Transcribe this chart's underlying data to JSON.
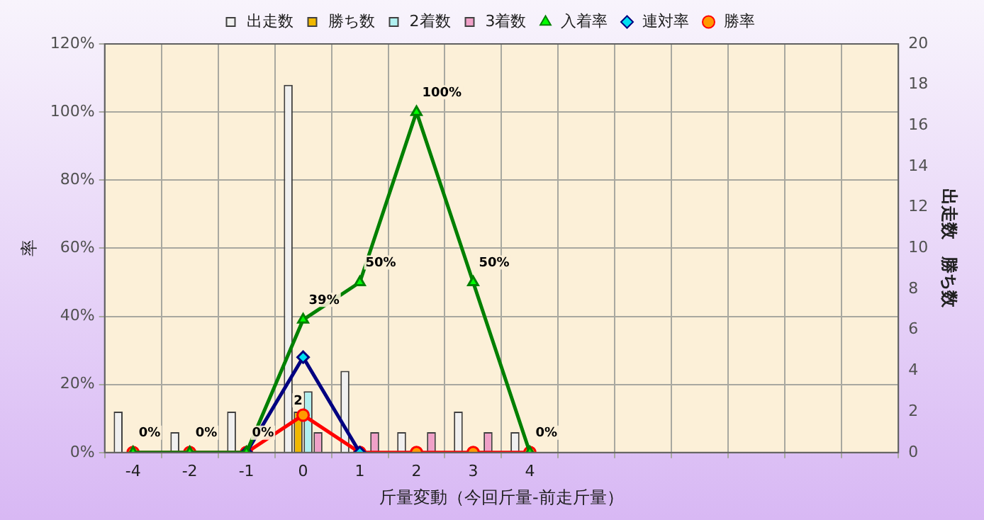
{
  "chart_data": {
    "type": "bar",
    "categories": [
      "-4",
      "-2",
      "-1",
      "0",
      "1",
      "2",
      "3",
      "4",
      null,
      null,
      null,
      null,
      null,
      null
    ],
    "xlabel": "斤量変動（今回斤量-前走斤量）",
    "ylabel": "率",
    "y2label": "出走数　勝ち数",
    "ylim": [
      0,
      120
    ],
    "yticks": [
      {
        "value": 0,
        "label": "0%"
      },
      {
        "value": 20,
        "label": "20%"
      },
      {
        "value": 40,
        "label": "40%"
      },
      {
        "value": 60,
        "label": "60%"
      },
      {
        "value": 80,
        "label": "80%"
      },
      {
        "value": 100,
        "label": "100%"
      },
      {
        "value": 120,
        "label": "120%"
      }
    ],
    "y2lim": [
      0,
      20
    ],
    "y2ticks": [
      0,
      2,
      4,
      6,
      8,
      10,
      12,
      14,
      16,
      18,
      20
    ],
    "grid": true,
    "legend": "top",
    "series": [
      {
        "name": "出走数",
        "axis": "y2",
        "color": "#f0f0f0",
        "values": [
          2,
          1,
          2,
          18,
          4,
          1,
          2,
          1,
          null,
          null,
          null,
          null,
          null,
          null
        ]
      },
      {
        "name": "勝ち数",
        "axis": "y2",
        "color": "#f0b800",
        "values": [
          0,
          0,
          0,
          2,
          0,
          0,
          0,
          0,
          null,
          null,
          null,
          null,
          null,
          null
        ],
        "value_labels": [
          null,
          null,
          null,
          "2",
          null,
          null,
          null,
          null,
          null,
          null,
          null,
          null,
          null,
          null
        ]
      },
      {
        "name": "2着数",
        "axis": "y2",
        "color": "#b0f0f0",
        "values": [
          0,
          0,
          0,
          3,
          0,
          0,
          0,
          0,
          null,
          null,
          null,
          null,
          null,
          null
        ]
      },
      {
        "name": "3着数",
        "axis": "y2",
        "color": "#f0a0c8",
        "values": [
          0,
          0,
          0,
          1,
          1,
          1,
          1,
          0,
          null,
          null,
          null,
          null,
          null,
          null
        ]
      },
      {
        "name": "入着率",
        "type": "line",
        "color": "#008000",
        "marker": "triangle",
        "values": [
          0,
          0,
          0,
          39,
          50,
          100,
          50,
          0,
          null,
          null,
          null,
          null,
          null,
          null
        ],
        "value_labels": [
          "0%",
          "0%",
          "0%",
          "39%",
          "50%",
          "100%",
          "50%",
          "0%",
          null,
          null,
          null,
          null,
          null,
          null
        ]
      },
      {
        "name": "連対率",
        "type": "line",
        "color": "#000080",
        "marker": "diamond",
        "values": [
          null,
          null,
          0,
          28,
          0,
          null,
          null,
          null,
          null,
          null,
          null,
          null,
          null,
          null
        ]
      },
      {
        "name": "勝率",
        "type": "line",
        "color": "#ff0000",
        "marker": "circle",
        "values": [
          0,
          0,
          0,
          11,
          0,
          0,
          0,
          0,
          null,
          null,
          null,
          null,
          null,
          null
        ]
      }
    ]
  }
}
